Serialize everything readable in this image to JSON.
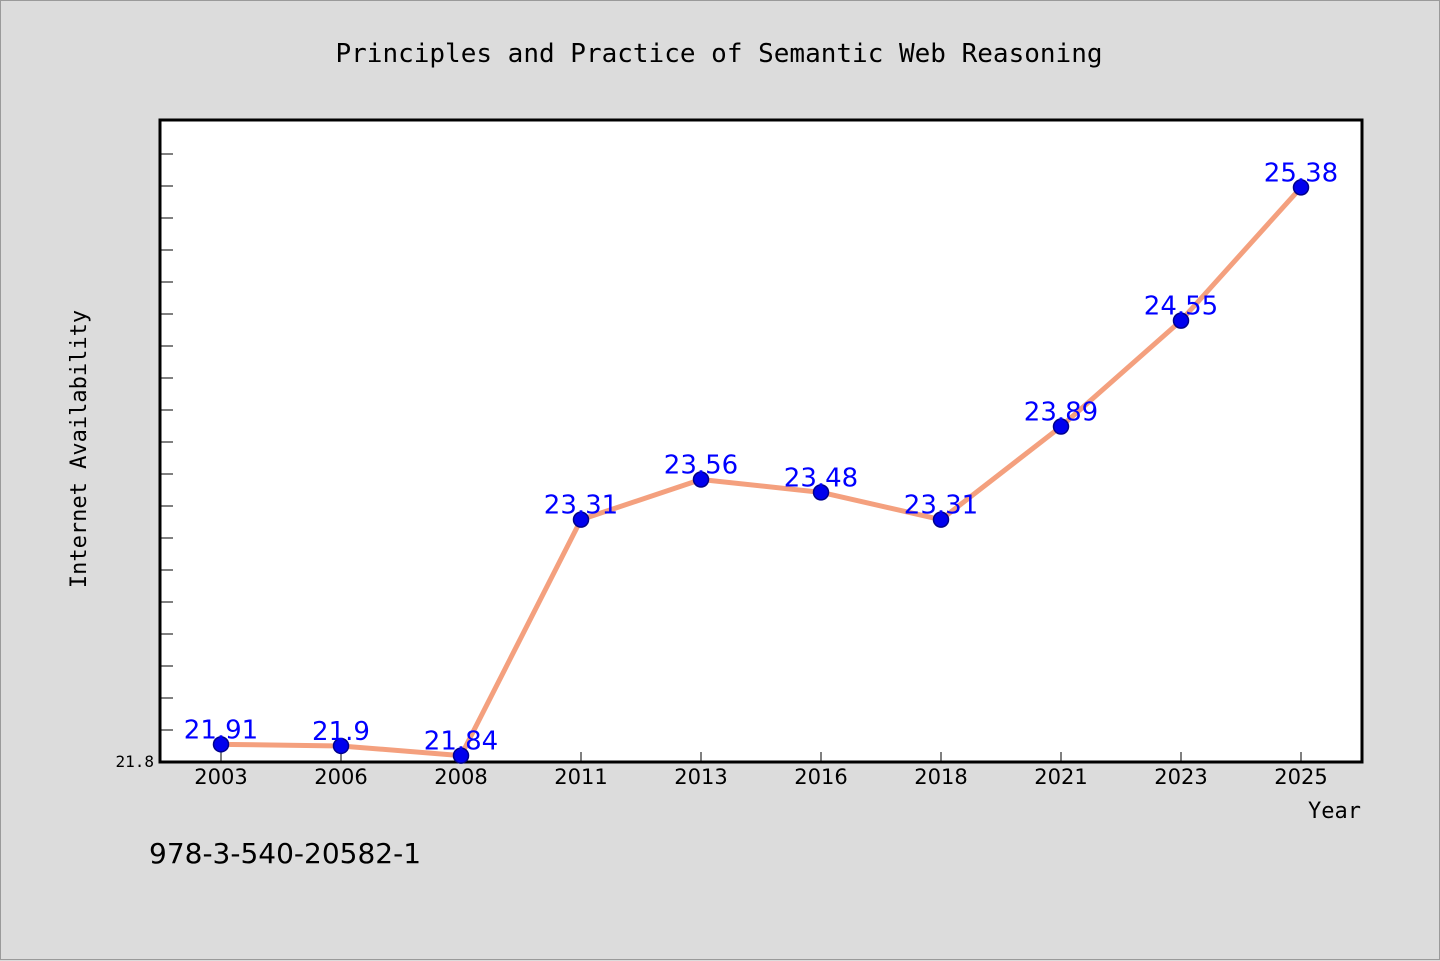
{
  "chart_data": {
    "type": "line",
    "title": "Principles and Practice of Semantic Web Reasoning",
    "xlabel": "Year",
    "ylabel": "Internet Availability",
    "categories": [
      "2003",
      "2006",
      "2008",
      "2011",
      "2013",
      "2016",
      "2018",
      "2021",
      "2023",
      "2025"
    ],
    "values": [
      21.91,
      21.9,
      21.84,
      23.31,
      23.56,
      23.48,
      23.31,
      23.89,
      24.55,
      25.38
    ],
    "data_labels": [
      "21.91",
      "21.9",
      "21.84",
      "23.31",
      "23.56",
      "23.48",
      "23.31",
      "23.89",
      "24.55",
      "25.38"
    ],
    "y_tick_labels": [
      "21.8"
    ],
    "ylim": [
      21.8,
      25.8
    ],
    "grid": false,
    "line_color": "#f4a07e",
    "marker_color": "#0000ee",
    "label_color": "#0000ff",
    "footnote": "978-3-540-20582-1"
  }
}
